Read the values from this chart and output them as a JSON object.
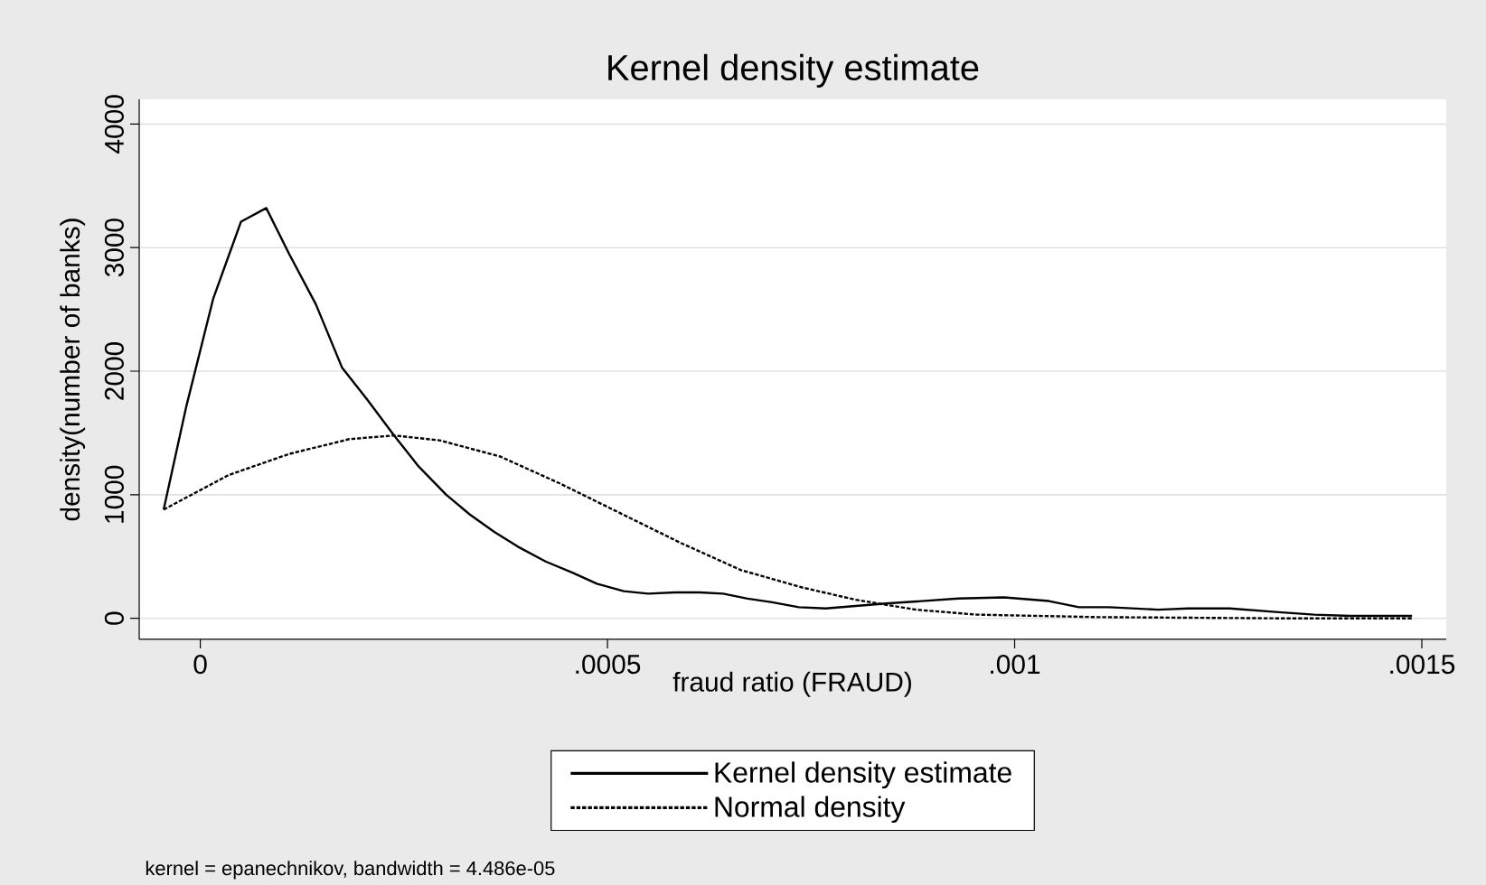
{
  "chart_data": {
    "type": "line",
    "title": "Kernel density estimate",
    "xlabel": "fraud ratio (FRAUD)",
    "ylabel": "density(number of banks)",
    "annotations": [
      "kernel = epanechnikov, bandwidth =  4.486e-05"
    ],
    "xlim": [
      -7.5e-05,
      0.00153
    ],
    "ylim": [
      -170,
      4200
    ],
    "xticks": [
      0,
      {
        "value": 0.0005,
        "label": ".0005"
      },
      {
        "value": 0.001,
        "label": ".001"
      },
      {
        "value": 0.0015,
        "label": ".0015"
      }
    ],
    "yticks": [
      0,
      1000,
      2000,
      3000,
      4000
    ],
    "grid": "y",
    "legend": "bottom",
    "marker": "none",
    "series": [
      {
        "name": "Kernel density estimate",
        "color": "#000000",
        "line_style": "solid",
        "x": [
          -4.5e-05,
          -1.7e-05,
          1.6e-05,
          5e-05,
          8.1e-05,
          0.000109,
          0.000142,
          0.000174,
          0.000205,
          0.000238,
          0.000268,
          0.000302,
          0.000331,
          0.000361,
          0.00039,
          0.000424,
          0.000457,
          0.000487,
          0.00052,
          0.00055,
          0.000583,
          0.000613,
          0.000642,
          0.000672,
          0.000702,
          0.000735,
          0.000768,
          0.000842,
          0.000931,
          0.000987,
          0.001042,
          0.001079,
          0.001116,
          0.001176,
          0.001213,
          0.001264,
          0.001324,
          0.001368,
          0.001412,
          0.001488
        ],
        "values": [
          880,
          1720,
          2590,
          3210,
          3320,
          2950,
          2540,
          2030,
          1770,
          1480,
          1230,
          1000,
          840,
          700,
          580,
          460,
          370,
          280,
          220,
          200,
          210,
          210,
          200,
          160,
          130,
          90,
          80,
          120,
          160,
          170,
          140,
          90,
          90,
          70,
          80,
          80,
          50,
          30,
          20,
          20
        ]
      },
      {
        "name": "Normal density",
        "color": "#000000",
        "line_style": "dotted",
        "x": [
          -4.5e-05,
          3.5e-05,
          0.000109,
          0.000183,
          0.000238,
          0.000294,
          0.000368,
          0.000442,
          0.000516,
          0.00059,
          0.000664,
          0.000739,
          0.000805,
          0.000879,
          0.000953,
          0.001101,
          0.001324,
          0.001488
        ],
        "values": [
          880,
          1160,
          1330,
          1450,
          1480,
          1440,
          1310,
          1090,
          850,
          610,
          390,
          250,
          150,
          70,
          30,
          10,
          0,
          0
        ]
      }
    ]
  }
}
